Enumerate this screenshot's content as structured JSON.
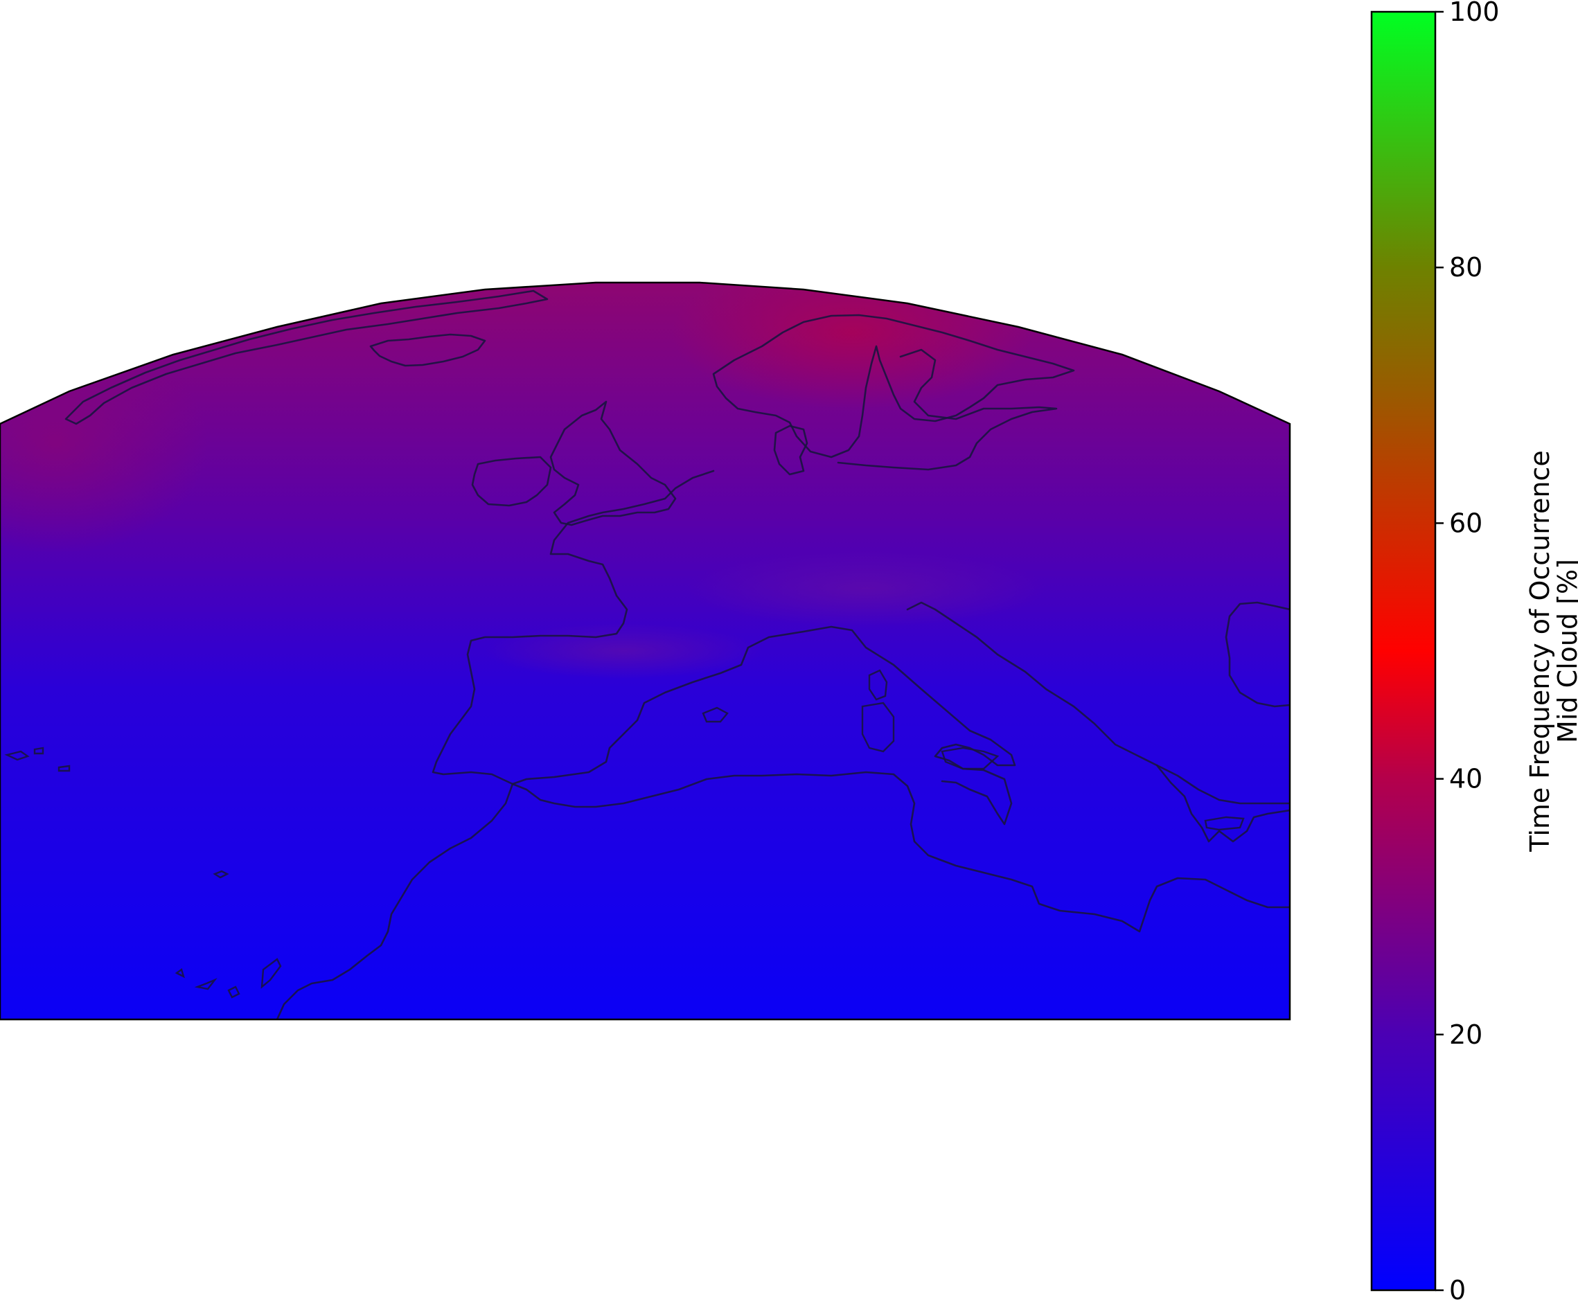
{
  "map": {
    "projection": "conic",
    "region": "Europe, North Atlantic and North Africa",
    "colormap": {
      "stops": [
        {
          "value": 0,
          "color": "#0000ff"
        },
        {
          "value": 20,
          "color": "#4b00b4"
        },
        {
          "value": 40,
          "color": "#b4004b"
        },
        {
          "value": 50,
          "color": "#ff0000"
        },
        {
          "value": 70,
          "color": "#9a5a00"
        },
        {
          "value": 80,
          "color": "#6e8200"
        },
        {
          "value": 100,
          "color": "#00ff22"
        }
      ]
    },
    "field_colors": {
      "far_north": "#8f0670",
      "north": "#5a00a8",
      "middle": "#2a00d8",
      "south": "#0a00f6",
      "scandinavia_high": "#b0024f",
      "alps_band": "#6a10a0"
    },
    "coastline_color": "#1a1440"
  },
  "colorbar": {
    "label_line1": "Time Frequency of Occurrence",
    "label_line2": "Mid Cloud [%]",
    "ticks": [
      "0",
      "20",
      "40",
      "60",
      "80",
      "100"
    ],
    "tick_values": [
      0,
      20,
      40,
      60,
      80,
      100
    ],
    "range": [
      0,
      100
    ]
  }
}
